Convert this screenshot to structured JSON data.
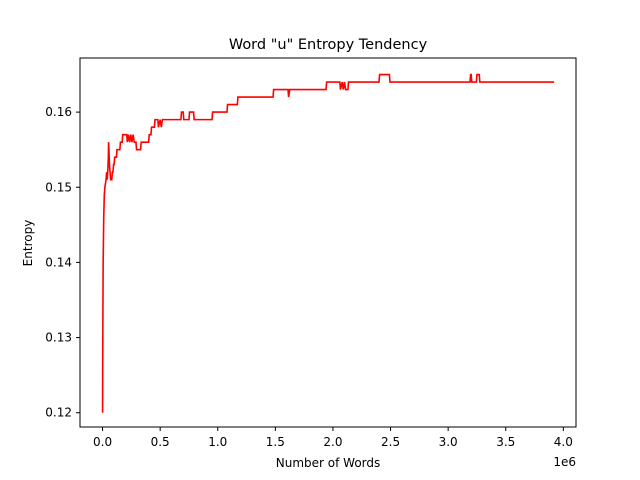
{
  "chart_data": {
    "type": "line",
    "title": "Word \"u\" Entropy Tendency",
    "xlabel": "Number of Words",
    "ylabel": "Entropy",
    "x_offset_label": "1e6",
    "xlim": [
      -0.196,
      4.11
    ],
    "ylim": [
      0.1181,
      0.1672
    ],
    "x_ticks": [
      0.0,
      0.5,
      1.0,
      1.5,
      2.0,
      2.5,
      3.0,
      3.5,
      4.0
    ],
    "x_tick_labels": [
      "0.0",
      "0.5",
      "1.0",
      "1.5",
      "2.0",
      "2.5",
      "3.0",
      "3.5",
      "4.0"
    ],
    "y_ticks": [
      0.12,
      0.13,
      0.14,
      0.15,
      0.16
    ],
    "y_tick_labels": [
      "0.12",
      "0.13",
      "0.14",
      "0.15",
      "0.16"
    ],
    "grid": false,
    "legend": "none",
    "colors": {
      "line": "#ff0000",
      "axes": "#000000",
      "background": "#ffffff"
    },
    "series": [
      {
        "x_unit": "millions of words",
        "points": [
          [
            0.0,
            0.12
          ],
          [
            0.002,
            0.13
          ],
          [
            0.005,
            0.14
          ],
          [
            0.01,
            0.146
          ],
          [
            0.015,
            0.149
          ],
          [
            0.02,
            0.15
          ],
          [
            0.03,
            0.151
          ],
          [
            0.035,
            0.152
          ],
          [
            0.04,
            0.151
          ],
          [
            0.045,
            0.152
          ],
          [
            0.05,
            0.154
          ],
          [
            0.052,
            0.156
          ],
          [
            0.055,
            0.155
          ],
          [
            0.06,
            0.153
          ],
          [
            0.065,
            0.152
          ],
          [
            0.07,
            0.151
          ],
          [
            0.08,
            0.151
          ],
          [
            0.085,
            0.152
          ],
          [
            0.09,
            0.152
          ],
          [
            0.095,
            0.153
          ],
          [
            0.1,
            0.153
          ],
          [
            0.105,
            0.154
          ],
          [
            0.12,
            0.154
          ],
          [
            0.125,
            0.155
          ],
          [
            0.15,
            0.155
          ],
          [
            0.155,
            0.156
          ],
          [
            0.17,
            0.156
          ],
          [
            0.175,
            0.157
          ],
          [
            0.21,
            0.157
          ],
          [
            0.215,
            0.156
          ],
          [
            0.225,
            0.157
          ],
          [
            0.235,
            0.156
          ],
          [
            0.245,
            0.157
          ],
          [
            0.255,
            0.156
          ],
          [
            0.265,
            0.157
          ],
          [
            0.275,
            0.156
          ],
          [
            0.29,
            0.156
          ],
          [
            0.295,
            0.155
          ],
          [
            0.33,
            0.155
          ],
          [
            0.335,
            0.156
          ],
          [
            0.4,
            0.156
          ],
          [
            0.405,
            0.157
          ],
          [
            0.42,
            0.157
          ],
          [
            0.425,
            0.158
          ],
          [
            0.45,
            0.158
          ],
          [
            0.455,
            0.159
          ],
          [
            0.48,
            0.159
          ],
          [
            0.485,
            0.158
          ],
          [
            0.5,
            0.159
          ],
          [
            0.51,
            0.158
          ],
          [
            0.52,
            0.159
          ],
          [
            0.68,
            0.159
          ],
          [
            0.685,
            0.16
          ],
          [
            0.7,
            0.16
          ],
          [
            0.705,
            0.159
          ],
          [
            0.75,
            0.159
          ],
          [
            0.755,
            0.16
          ],
          [
            0.79,
            0.16
          ],
          [
            0.795,
            0.159
          ],
          [
            0.95,
            0.159
          ],
          [
            0.955,
            0.16
          ],
          [
            1.08,
            0.16
          ],
          [
            1.085,
            0.161
          ],
          [
            1.17,
            0.161
          ],
          [
            1.175,
            0.162
          ],
          [
            1.48,
            0.162
          ],
          [
            1.485,
            0.163
          ],
          [
            1.61,
            0.163
          ],
          [
            1.615,
            0.162
          ],
          [
            1.625,
            0.163
          ],
          [
            1.94,
            0.163
          ],
          [
            1.945,
            0.164
          ],
          [
            2.06,
            0.164
          ],
          [
            2.065,
            0.163
          ],
          [
            2.08,
            0.164
          ],
          [
            2.09,
            0.163
          ],
          [
            2.1,
            0.164
          ],
          [
            2.11,
            0.163
          ],
          [
            2.13,
            0.163
          ],
          [
            2.135,
            0.164
          ],
          [
            2.4,
            0.164
          ],
          [
            2.405,
            0.165
          ],
          [
            2.49,
            0.165
          ],
          [
            2.495,
            0.164
          ],
          [
            3.19,
            0.164
          ],
          [
            3.195,
            0.165
          ],
          [
            3.2,
            0.165
          ],
          [
            3.205,
            0.164
          ],
          [
            3.245,
            0.164
          ],
          [
            3.25,
            0.165
          ],
          [
            3.27,
            0.165
          ],
          [
            3.275,
            0.164
          ],
          [
            3.92,
            0.164
          ]
        ]
      }
    ]
  }
}
